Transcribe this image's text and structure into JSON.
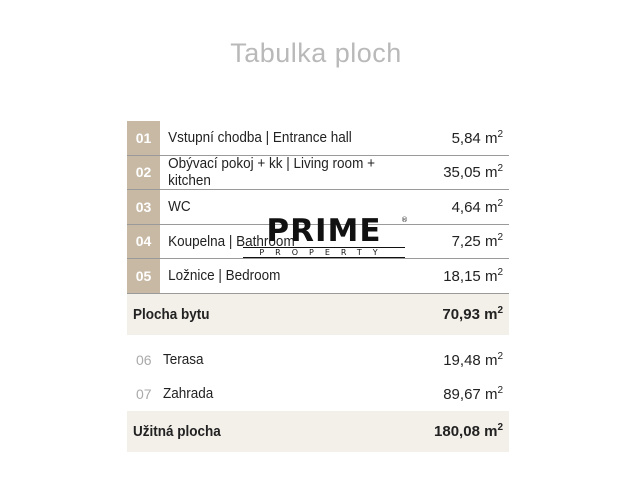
{
  "title": "Tabulka ploch",
  "unit": "m",
  "rooms": [
    {
      "num": "01",
      "label": "Vstupní chodba | Entrance hall",
      "value": "5,84"
    },
    {
      "num": "02",
      "label": "Obývací pokoj + kk | Living room + kitchen",
      "value": "35,05"
    },
    {
      "num": "03",
      "label": "WC",
      "value": "4,64"
    },
    {
      "num": "04",
      "label": "Koupelna | Bathroom",
      "value": "7,25"
    },
    {
      "num": "05",
      "label": "Ložnice | Bedroom",
      "value": "18,15"
    }
  ],
  "subtotal": {
    "label": "Plocha bytu",
    "value": "70,93"
  },
  "extras": [
    {
      "num": "06",
      "label": "Terasa",
      "value": "19,48"
    },
    {
      "num": "07",
      "label": "Zahrada",
      "value": "89,67"
    }
  ],
  "total": {
    "label": "Užitná plocha",
    "value": "180,08"
  },
  "watermark": {
    "brand": "PRIME",
    "sub": "PROPERTY",
    "mark": "®"
  },
  "colors": {
    "accent": "#c8b9a4",
    "summary_bg": "#f3efe9"
  }
}
